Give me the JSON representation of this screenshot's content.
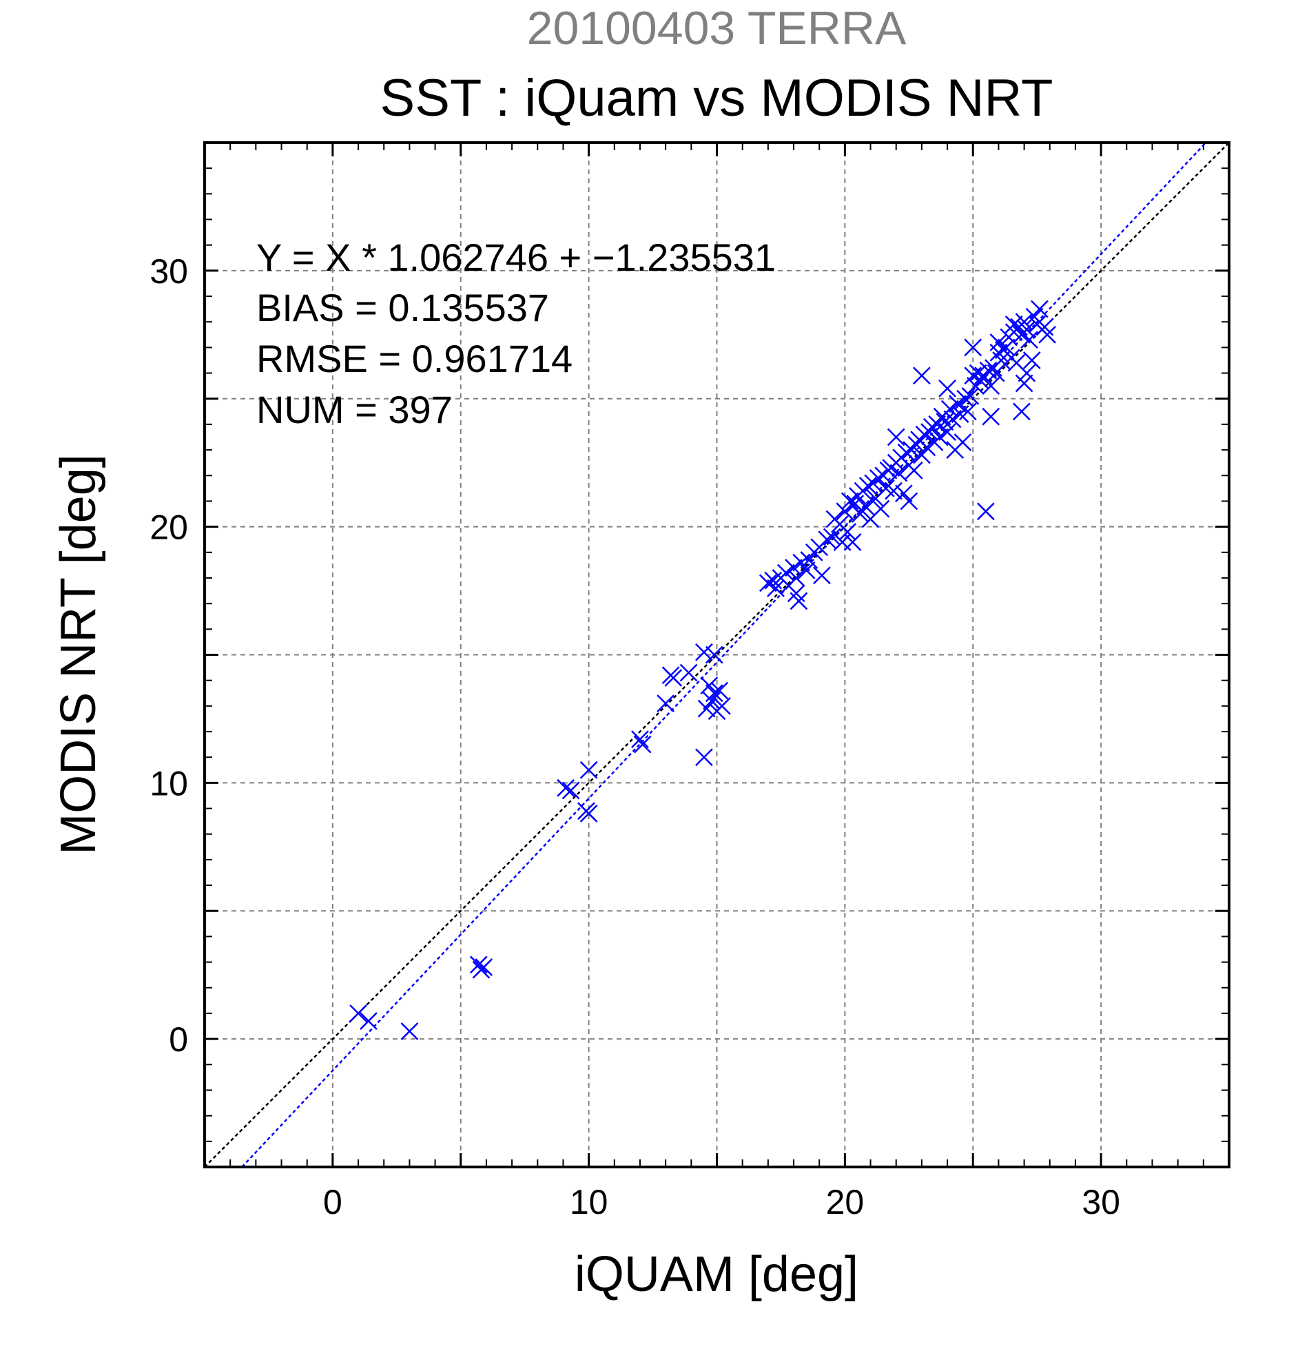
{
  "chart_data": {
    "type": "scatter",
    "date_title": "20100403 TERRA",
    "title": "SST : iQuam vs MODIS NRT",
    "xlabel": "iQUAM [deg]",
    "ylabel": "MODIS NRT [deg]",
    "xlim": [
      -5,
      35
    ],
    "ylim": [
      -5,
      35
    ],
    "x_ticks": [
      0,
      10,
      20,
      30
    ],
    "y_ticks": [
      0,
      10,
      20,
      30
    ],
    "x_tick_labels": [
      "0",
      "10",
      "20",
      "30"
    ],
    "y_tick_labels": [
      "0",
      "10",
      "20",
      "30"
    ],
    "grid": true,
    "marker": "x",
    "colors": {
      "points": "#0000ff",
      "fit_line": "#0000ff",
      "identity_line": "#000000",
      "grid": "#808080",
      "date_title": "#808080"
    },
    "stats": [
      "Y = X * 1.062746 + −1.235531",
      "BIAS = 0.135537",
      "RMSE = 0.961714",
      "NUM = 397"
    ],
    "fit": {
      "slope": 1.062746,
      "intercept": -1.235531
    },
    "points": [
      [
        1.0,
        1.0
      ],
      [
        1.4,
        0.7
      ],
      [
        3.0,
        0.3
      ],
      [
        5.7,
        2.9
      ],
      [
        5.8,
        2.7
      ],
      [
        5.9,
        2.8
      ],
      [
        9.1,
        9.8
      ],
      [
        9.3,
        9.7
      ],
      [
        10.0,
        10.5
      ],
      [
        9.9,
        8.9
      ],
      [
        10.0,
        8.8
      ],
      [
        12.0,
        11.7
      ],
      [
        12.1,
        11.5
      ],
      [
        13.0,
        13.1
      ],
      [
        13.2,
        14.2
      ],
      [
        13.3,
        14.1
      ],
      [
        13.9,
        14.3
      ],
      [
        14.5,
        15.1
      ],
      [
        14.9,
        15.0
      ],
      [
        14.5,
        11.0
      ],
      [
        14.6,
        12.9
      ],
      [
        14.8,
        13.2
      ],
      [
        14.9,
        13.5
      ],
      [
        15.0,
        12.8
      ],
      [
        15.1,
        13.6
      ],
      [
        15.2,
        13.0
      ],
      [
        14.7,
        13.8
      ],
      [
        17.0,
        17.8
      ],
      [
        17.2,
        17.9
      ],
      [
        17.3,
        17.6
      ],
      [
        17.5,
        18.0
      ],
      [
        17.7,
        18.2
      ],
      [
        17.8,
        17.7
      ],
      [
        18.0,
        18.4
      ],
      [
        18.1,
        18.0
      ],
      [
        18.2,
        17.1
      ],
      [
        18.1,
        17.4
      ],
      [
        18.3,
        18.6
      ],
      [
        18.5,
        18.3
      ],
      [
        18.6,
        18.7
      ],
      [
        18.8,
        19.0
      ],
      [
        19.0,
        19.2
      ],
      [
        19.1,
        18.1
      ],
      [
        19.3,
        19.5
      ],
      [
        19.5,
        19.6
      ],
      [
        19.6,
        20.3
      ],
      [
        19.8,
        20.1
      ],
      [
        19.9,
        19.4
      ],
      [
        20.0,
        20.6
      ],
      [
        20.1,
        19.8
      ],
      [
        20.2,
        21.0
      ],
      [
        20.3,
        19.4
      ],
      [
        20.4,
        20.9
      ],
      [
        20.5,
        21.2
      ],
      [
        20.6,
        20.5
      ],
      [
        20.7,
        21.4
      ],
      [
        20.8,
        20.8
      ],
      [
        20.9,
        21.6
      ],
      [
        21.0,
        20.3
      ],
      [
        21.1,
        21.7
      ],
      [
        21.2,
        21.1
      ],
      [
        21.3,
        21.9
      ],
      [
        21.4,
        20.7
      ],
      [
        21.5,
        22.0
      ],
      [
        21.6,
        21.5
      ],
      [
        21.7,
        22.2
      ],
      [
        21.8,
        22.3
      ],
      [
        21.9,
        21.4
      ],
      [
        22.0,
        22.5
      ],
      [
        22.0,
        23.5
      ],
      [
        22.1,
        22.1
      ],
      [
        22.2,
        22.7
      ],
      [
        22.3,
        21.3
      ],
      [
        22.4,
        22.9
      ],
      [
        22.5,
        22.4
      ],
      [
        22.5,
        21.0
      ],
      [
        22.6,
        23.0
      ],
      [
        22.7,
        22.2
      ],
      [
        22.8,
        23.2
      ],
      [
        22.9,
        23.4
      ],
      [
        23.0,
        22.8
      ],
      [
        23.0,
        25.9
      ],
      [
        23.1,
        23.6
      ],
      [
        23.2,
        23.1
      ],
      [
        23.3,
        23.7
      ],
      [
        23.4,
        23.9
      ],
      [
        23.5,
        23.3
      ],
      [
        23.6,
        24.0
      ],
      [
        23.7,
        23.5
      ],
      [
        23.8,
        24.3
      ],
      [
        23.9,
        24.1
      ],
      [
        24.0,
        23.7
      ],
      [
        24.0,
        25.4
      ],
      [
        24.1,
        24.6
      ],
      [
        24.2,
        24.2
      ],
      [
        24.3,
        23.0
      ],
      [
        24.4,
        24.8
      ],
      [
        24.5,
        24.4
      ],
      [
        24.6,
        23.3
      ],
      [
        24.7,
        25.0
      ],
      [
        24.8,
        24.5
      ],
      [
        24.9,
        25.1
      ],
      [
        25.0,
        27.0
      ],
      [
        25.0,
        25.9
      ],
      [
        25.1,
        25.5
      ],
      [
        25.2,
        26.0
      ],
      [
        25.3,
        25.7
      ],
      [
        25.4,
        25.9
      ],
      [
        25.5,
        20.6
      ],
      [
        25.6,
        26.1
      ],
      [
        25.7,
        25.5
      ],
      [
        25.7,
        24.3
      ],
      [
        25.8,
        26.2
      ],
      [
        25.9,
        26.0
      ],
      [
        26.0,
        26.8
      ],
      [
        26.0,
        27.2
      ],
      [
        26.1,
        26.5
      ],
      [
        26.2,
        26.9
      ],
      [
        26.3,
        27.0
      ],
      [
        26.4,
        27.4
      ],
      [
        26.5,
        26.6
      ],
      [
        26.6,
        27.6
      ],
      [
        26.6,
        27.9
      ],
      [
        26.7,
        26.4
      ],
      [
        26.8,
        27.8
      ],
      [
        26.9,
        27.5
      ],
      [
        26.9,
        24.5
      ],
      [
        27.0,
        28.0
      ],
      [
        27.0,
        25.6
      ],
      [
        27.1,
        27.7
      ],
      [
        27.1,
        26.0
      ],
      [
        27.2,
        27.3
      ],
      [
        27.3,
        26.5
      ],
      [
        27.4,
        28.2
      ],
      [
        27.5,
        27.9
      ],
      [
        27.6,
        28.5
      ],
      [
        27.8,
        27.8
      ],
      [
        27.9,
        27.5
      ]
    ]
  }
}
